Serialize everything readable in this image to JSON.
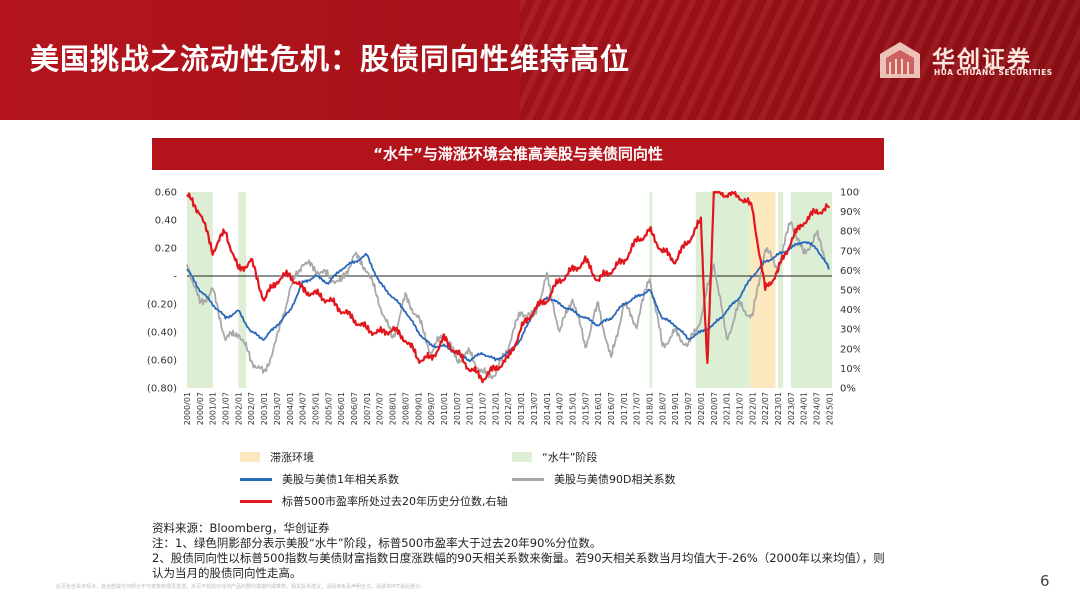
{
  "header": {
    "title": "美国挑战之流动性危机：股债同向性维持高位",
    "logo_cn": "华创证券",
    "logo_en": "HUA CHUANG SECURITIES"
  },
  "chart_title": "“水牛”与滞涨环境会推高美股与美债同向性",
  "chart_data": {
    "type": "line",
    "x_labels": [
      "2000/01",
      "2000/07",
      "2001/01",
      "2001/07",
      "2002/01",
      "2002/07",
      "2003/01",
      "2003/07",
      "2004/01",
      "2004/07",
      "2005/01",
      "2005/07",
      "2006/01",
      "2006/07",
      "2007/01",
      "2007/07",
      "2008/01",
      "2008/07",
      "2009/01",
      "2009/07",
      "2010/01",
      "2010/07",
      "2011/01",
      "2011/07",
      "2012/01",
      "2012/07",
      "2013/01",
      "2013/07",
      "2014/01",
      "2014/07",
      "2015/01",
      "2015/07",
      "2016/01",
      "2016/07",
      "2017/01",
      "2017/07",
      "2018/01",
      "2018/07",
      "2019/01",
      "2019/07",
      "2020/01",
      "2020/07",
      "2021/01",
      "2021/07",
      "2022/01",
      "2022/07",
      "2023/01",
      "2023/07",
      "2024/01",
      "2024/07",
      "2025/01"
    ],
    "y_left": {
      "ticks": [
        "0.60",
        "0.40",
        "0.20",
        "-",
        "(0.20)",
        "(0.40)",
        "(0.60)",
        "(0.80)"
      ],
      "min": -0.8,
      "max": 0.6
    },
    "y_right": {
      "ticks": [
        "100%",
        "90%",
        "80%",
        "70%",
        "60%",
        "50%",
        "40%",
        "30%",
        "20%",
        "10%",
        "0%"
      ],
      "min": 0,
      "max": 100
    },
    "shaded_periods": [
      {
        "type": "shuiniu",
        "start": 2000.0,
        "end": 2001.0
      },
      {
        "type": "shuiniu",
        "start": 2002.0,
        "end": 2002.3
      },
      {
        "type": "shuiniu",
        "start": 2018.0,
        "end": 2018.1
      },
      {
        "type": "shuiniu",
        "start": 2019.8,
        "end": 2021.9
      },
      {
        "type": "stagflation",
        "start": 2021.9,
        "end": 2022.9
      },
      {
        "type": "shuiniu",
        "start": 2023.0,
        "end": 2023.2
      },
      {
        "type": "shuiniu",
        "start": 2023.5,
        "end": 2025.1
      }
    ],
    "series": [
      {
        "name": "美股与美债1年相关系数",
        "color": "#2a68b8",
        "axis": "left",
        "x": [
          2000.0,
          2000.5,
          2001.0,
          2001.5,
          2002.0,
          2002.5,
          2003.0,
          2003.5,
          2004.0,
          2004.5,
          2005.0,
          2005.5,
          2006.0,
          2006.5,
          2007.0,
          2007.5,
          2008.0,
          2008.5,
          2009.0,
          2009.5,
          2010.0,
          2010.5,
          2011.0,
          2011.5,
          2012.0,
          2012.5,
          2013.0,
          2013.5,
          2014.0,
          2014.5,
          2015.0,
          2015.5,
          2016.0,
          2016.5,
          2017.0,
          2017.5,
          2018.0,
          2018.5,
          2019.0,
          2019.5,
          2020.0,
          2020.5,
          2021.0,
          2021.5,
          2022.0,
          2022.5,
          2023.0,
          2023.5,
          2024.0,
          2024.5,
          2025.0
        ],
        "y": [
          0.05,
          -0.1,
          -0.2,
          -0.3,
          -0.25,
          -0.4,
          -0.45,
          -0.35,
          -0.25,
          -0.05,
          0.0,
          -0.05,
          0.05,
          0.1,
          0.15,
          -0.05,
          -0.15,
          -0.25,
          -0.4,
          -0.5,
          -0.5,
          -0.55,
          -0.6,
          -0.55,
          -0.6,
          -0.55,
          -0.45,
          -0.25,
          -0.15,
          -0.2,
          -0.25,
          -0.3,
          -0.35,
          -0.3,
          -0.2,
          -0.15,
          -0.1,
          -0.3,
          -0.35,
          -0.45,
          -0.4,
          -0.35,
          -0.25,
          -0.15,
          0.0,
          0.1,
          0.15,
          0.2,
          0.25,
          0.2,
          0.05
        ]
      },
      {
        "name": "美股与美债90D相关系数",
        "color": "#a8a8a8",
        "axis": "left",
        "x": [
          2000.0,
          2000.5,
          2001.0,
          2001.5,
          2002.0,
          2002.5,
          2003.0,
          2003.5,
          2004.0,
          2004.5,
          2005.0,
          2005.5,
          2006.0,
          2006.5,
          2007.0,
          2007.5,
          2008.0,
          2008.5,
          2009.0,
          2009.5,
          2010.0,
          2010.5,
          2011.0,
          2011.5,
          2012.0,
          2012.5,
          2013.0,
          2013.5,
          2014.0,
          2014.5,
          2015.0,
          2015.5,
          2016.0,
          2016.5,
          2017.0,
          2017.5,
          2018.0,
          2018.5,
          2019.0,
          2019.5,
          2020.0,
          2020.5,
          2021.0,
          2021.5,
          2022.0,
          2022.5,
          2023.0,
          2023.5,
          2024.0,
          2024.5,
          2025.0
        ],
        "y": [
          0.1,
          -0.2,
          -0.1,
          -0.45,
          -0.4,
          -0.6,
          -0.7,
          -0.45,
          -0.1,
          0.1,
          0.05,
          0.0,
          -0.05,
          0.15,
          0.05,
          -0.2,
          -0.45,
          -0.15,
          -0.3,
          -0.55,
          -0.4,
          -0.6,
          -0.55,
          -0.7,
          -0.7,
          -0.5,
          -0.25,
          -0.3,
          0.0,
          -0.4,
          -0.15,
          -0.5,
          -0.2,
          -0.6,
          -0.2,
          -0.35,
          0.0,
          -0.5,
          -0.4,
          -0.5,
          -0.3,
          0.1,
          -0.45,
          -0.2,
          -0.3,
          0.2,
          0.05,
          0.4,
          0.15,
          0.3,
          0.05
        ]
      },
      {
        "name": "标普500市盈率所处过去20年历史分位数,右轴",
        "color": "#e2171d",
        "axis": "right",
        "x": [
          2000.0,
          2000.5,
          2001.0,
          2001.5,
          2002.0,
          2002.5,
          2003.0,
          2003.5,
          2004.0,
          2004.5,
          2005.0,
          2005.5,
          2006.0,
          2006.5,
          2007.0,
          2007.5,
          2008.0,
          2008.5,
          2009.0,
          2009.5,
          2010.0,
          2010.5,
          2011.0,
          2011.5,
          2012.0,
          2012.5,
          2013.0,
          2013.5,
          2014.0,
          2014.5,
          2015.0,
          2015.5,
          2016.0,
          2016.5,
          2017.0,
          2017.5,
          2018.0,
          2018.5,
          2019.0,
          2019.5,
          2020.0,
          2020.25,
          2020.5,
          2021.0,
          2021.5,
          2022.0,
          2022.5,
          2023.0,
          2023.5,
          2024.0,
          2024.5,
          2025.0
        ],
        "y": [
          98,
          90,
          70,
          80,
          60,
          65,
          45,
          55,
          58,
          50,
          48,
          45,
          40,
          35,
          30,
          28,
          30,
          25,
          15,
          15,
          25,
          18,
          10,
          5,
          10,
          15,
          30,
          40,
          45,
          55,
          60,
          65,
          55,
          60,
          65,
          75,
          80,
          70,
          65,
          75,
          85,
          10,
          100,
          99,
          98,
          92,
          50,
          60,
          75,
          85,
          90,
          92
        ]
      }
    ],
    "legend": {
      "stagflation": "滞涨环境",
      "shuiniu": "“水牛”阶段",
      "corr_1y": "美股与美债1年相关系数",
      "corr_90d": "美股与美债90D相关系数",
      "pe_pct": "标普500市盈率所处过去20年历史分位数,右轴"
    },
    "colors": {
      "stagflation": "#fbe8bf",
      "shuiniu": "#dceed4",
      "corr_1y": "#2a68b8",
      "corr_90d": "#a8a8a8",
      "pe_pct": "#e2171d"
    }
  },
  "notes": {
    "source": "资料来源：Bloomberg，华创证券",
    "note1": "注：1、绿色阴影部分表示美股“水牛”阶段，标普500市盈率大于过去20年90%分位数。",
    "note2a": "2、股债同向性以标普500指数与美债财富指数日度涨跌幅的90天相关系数来衡量。若90天相关系数当月均值大于-26%（2000年以来均值），则",
    "note2b": "认为当月的股债同向性走高。"
  },
  "footer": "此页包含投资观点，其全部或任何部分不可被复制或再发送。本页不构成对任何产品的要约或邀约或推荐，相关投资建议，请阅读免责声明全文，请适本PPT最后部分。",
  "page_number": "6"
}
